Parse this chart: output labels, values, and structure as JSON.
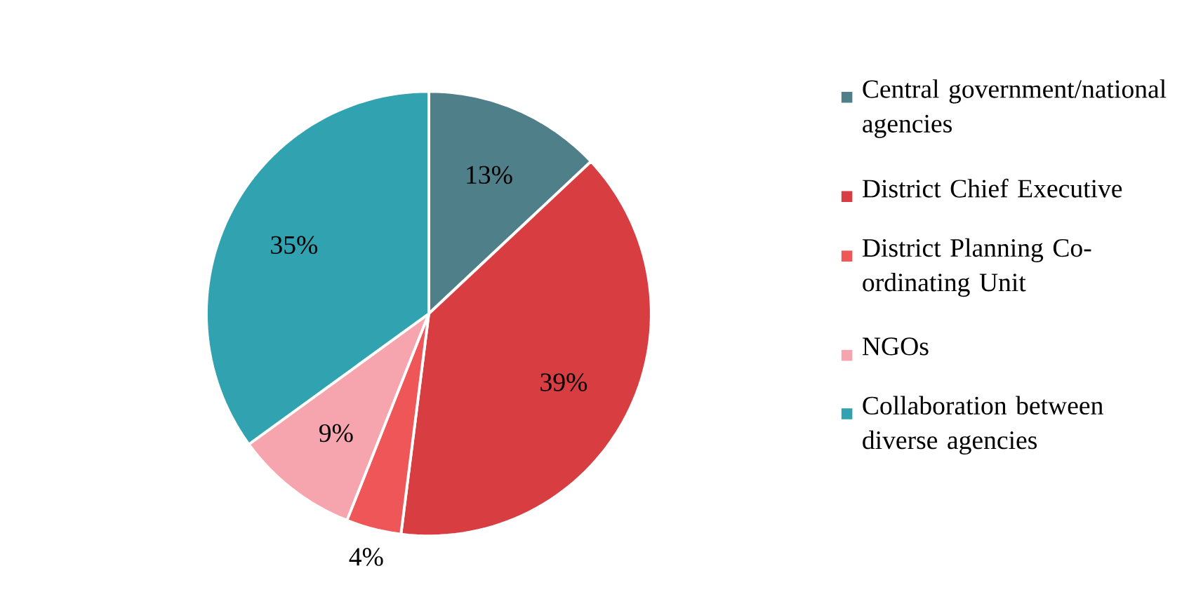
{
  "chart_data": {
    "type": "pie",
    "categories": [
      "Central government/national agencies",
      "District Chief Executive",
      "District Planning Co-ordinating Unit",
      "NGOs",
      "Collaboration between diverse agencies"
    ],
    "values": [
      13,
      39,
      4,
      9,
      35
    ],
    "colors": [
      "#4f7f88",
      "#d73d41",
      "#ef5657",
      "#f6a5ae",
      "#30a2b0"
    ],
    "value_labels": [
      "13%",
      "39%",
      "4%",
      "9%",
      "35%"
    ],
    "legend": "right"
  }
}
